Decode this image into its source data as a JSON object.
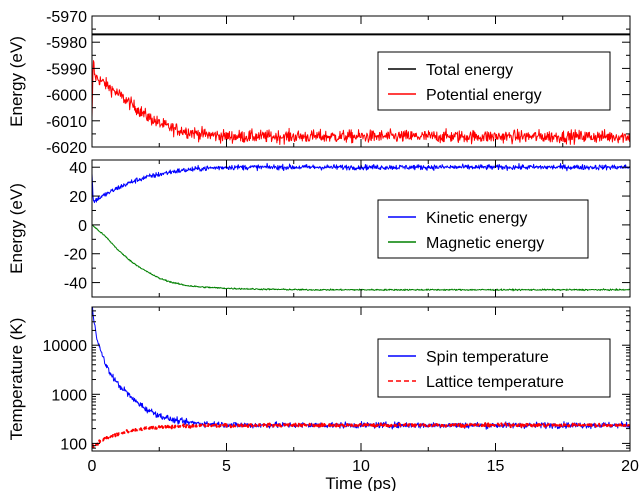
{
  "chart_data": [
    {
      "type": "line",
      "ylabel": "Energy (eV)",
      "xlim": [
        0,
        20
      ],
      "ylim": [
        -6020,
        -5970
      ],
      "yticks": [
        -6020,
        -6010,
        -6000,
        -5990,
        -5980,
        -5970
      ],
      "legend_position": "center-right",
      "series": [
        {
          "name": "Total energy",
          "color": "#000000",
          "dash": "solid",
          "x": [
            0,
            20
          ],
          "y": [
            -5977,
            -5977
          ]
        },
        {
          "name": "Potential energy",
          "color": "#ff0000",
          "dash": "solid",
          "noise": 1.2,
          "x": [
            0,
            0.05,
            0.1,
            0.5,
            1,
            1.5,
            2,
            2.5,
            3,
            3.5,
            4,
            5,
            6,
            8,
            10,
            12,
            15,
            18,
            20
          ],
          "y": [
            -6010,
            -5986,
            -5993,
            -5996,
            -6000,
            -6004,
            -6008,
            -6011,
            -6013,
            -6014,
            -6015,
            -6016,
            -6016,
            -6016,
            -6016,
            -6016,
            -6016,
            -6016,
            -6016
          ]
        }
      ]
    },
    {
      "type": "line",
      "ylabel": "Energy (eV)",
      "xlim": [
        0,
        20
      ],
      "ylim": [
        -50,
        45
      ],
      "yticks": [
        -40,
        -20,
        0,
        20,
        40
      ],
      "legend_position": "center-right",
      "series": [
        {
          "name": "Kinetic energy",
          "color": "#0000ff",
          "dash": "solid",
          "noise": 0.9,
          "x": [
            0,
            0.05,
            0.3,
            0.6,
            1,
            1.5,
            2,
            2.5,
            3,
            3.5,
            4,
            5,
            6,
            8,
            10,
            12,
            15,
            18,
            20
          ],
          "y": [
            35,
            16,
            19,
            22,
            26,
            30,
            33,
            35,
            37,
            38,
            39,
            40,
            40,
            40,
            40,
            40,
            40,
            40,
            40
          ]
        },
        {
          "name": "Magnetic energy",
          "color": "#008000",
          "dash": "solid",
          "noise": 0.25,
          "x": [
            0,
            0.5,
            1,
            1.5,
            2,
            2.5,
            3,
            3.5,
            4,
            5,
            6,
            8,
            10,
            12,
            15,
            18,
            20
          ],
          "y": [
            0,
            -8,
            -18,
            -26,
            -32,
            -37,
            -40,
            -42,
            -43,
            -44,
            -44.5,
            -45,
            -45,
            -45,
            -45,
            -45,
            -45
          ]
        }
      ]
    },
    {
      "type": "line",
      "xlabel": "Time (ps)",
      "ylabel": "Temperature (K)",
      "yscale": "log",
      "xlim": [
        0,
        20
      ],
      "ylim": [
        70,
        60000
      ],
      "xticks": [
        0,
        5,
        10,
        15,
        20
      ],
      "yticks": [
        100,
        1000,
        10000
      ],
      "legend_position": "center-right",
      "series": [
        {
          "name": "Spin temperature",
          "color": "#0000ff",
          "dash": "solid",
          "noise": 0.03,
          "x": [
            0,
            0.05,
            0.1,
            0.2,
            0.3,
            0.5,
            0.7,
            1,
            1.5,
            2,
            2.5,
            3,
            3.5,
            4,
            5,
            6,
            8,
            10,
            12,
            15,
            18,
            20
          ],
          "y": [
            60000,
            40000,
            25000,
            13000,
            8000,
            4000,
            2500,
            1500,
            800,
            500,
            370,
            300,
            270,
            255,
            240,
            235,
            235,
            235,
            235,
            235,
            235,
            235
          ]
        },
        {
          "name": "Lattice temperature",
          "color": "#ff0000",
          "dash": "dashed",
          "noise": 0.015,
          "x": [
            0,
            0.05,
            0.1,
            0.3,
            0.5,
            1,
            1.5,
            2,
            2.5,
            3,
            4,
            5,
            6,
            8,
            10,
            12,
            15,
            18,
            20
          ],
          "y": [
            100,
            85,
            90,
            110,
            125,
            155,
            180,
            200,
            210,
            220,
            228,
            232,
            234,
            235,
            235,
            235,
            235,
            235,
            235
          ]
        }
      ]
    }
  ]
}
